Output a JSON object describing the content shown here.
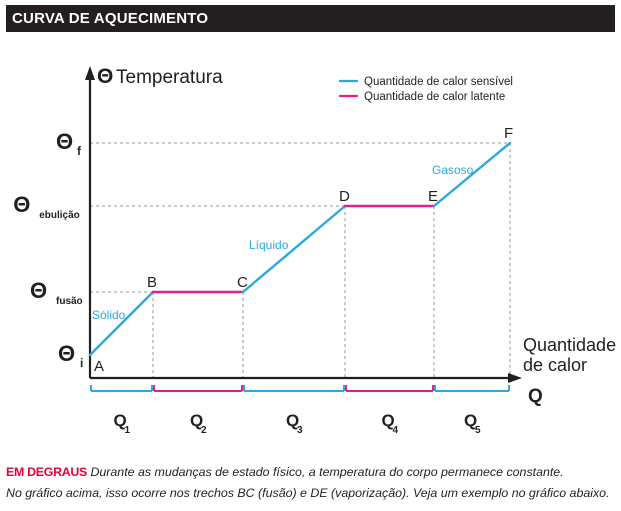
{
  "header": {
    "title": "CURVA DE AQUECIMENTO"
  },
  "colors": {
    "sensible": "#29a9e0",
    "latent": "#e0218a",
    "axis": "#231f20",
    "header_bg": "#231f20",
    "highlight": "#e4003b"
  },
  "chart_data": {
    "type": "line",
    "title": "CURVA DE AQUECIMENTO",
    "ylabel": "Temperatura",
    "xlabel": "Quantidade de calor",
    "x_axis_symbol": "Q",
    "y_axis_symbol": "Θ",
    "legend": {
      "position": "top-right",
      "entries": [
        {
          "label": "Quantidade de calor sensível",
          "color": "#29a9e0"
        },
        {
          "label": "Quantidade de calor latente",
          "color": "#e0218a"
        }
      ]
    },
    "y_levels": [
      {
        "key": "i",
        "label": "Θ",
        "sub": "i",
        "value": 0
      },
      {
        "key": "fusao",
        "label": "Θ",
        "sub": "fusão",
        "value": 1
      },
      {
        "key": "ebulicao",
        "label": "Θ",
        "sub": "ebulição",
        "value": 2
      },
      {
        "key": "f",
        "label": "Θ",
        "sub": "f",
        "value": 3
      }
    ],
    "points": [
      {
        "label": "A",
        "x": 0,
        "y": 0
      },
      {
        "label": "B",
        "x": 1,
        "y": 1
      },
      {
        "label": "C",
        "x": 2,
        "y": 1
      },
      {
        "label": "D",
        "x": 3,
        "y": 2
      },
      {
        "label": "E",
        "x": 4,
        "y": 2
      },
      {
        "label": "F",
        "x": 5,
        "y": 3
      }
    ],
    "segments": [
      {
        "from": "A",
        "to": "B",
        "type": "sensible",
        "label": "Sólido"
      },
      {
        "from": "B",
        "to": "C",
        "type": "latent",
        "label": ""
      },
      {
        "from": "C",
        "to": "D",
        "type": "sensible",
        "label": "Líquido"
      },
      {
        "from": "D",
        "to": "E",
        "type": "latent",
        "label": ""
      },
      {
        "from": "E",
        "to": "F",
        "type": "sensible",
        "label": "Gasoso"
      }
    ],
    "intervals": [
      {
        "label": "Q",
        "sub": "1",
        "type": "sensible"
      },
      {
        "label": "Q",
        "sub": "2",
        "type": "latent"
      },
      {
        "label": "Q",
        "sub": "3",
        "type": "sensible"
      },
      {
        "label": "Q",
        "sub": "4",
        "type": "latent"
      },
      {
        "label": "Q",
        "sub": "5",
        "type": "sensible"
      }
    ]
  },
  "caption": {
    "highlight": "EM DEGRAUS",
    "line1": "Durante as mudanças de estado físico, a temperatura do corpo permanece constante.",
    "line2": "No gráfico acima, isso ocorre nos trechos BC (fusão) e DE (vaporização). Veja um exemplo no gráfico abaixo."
  }
}
